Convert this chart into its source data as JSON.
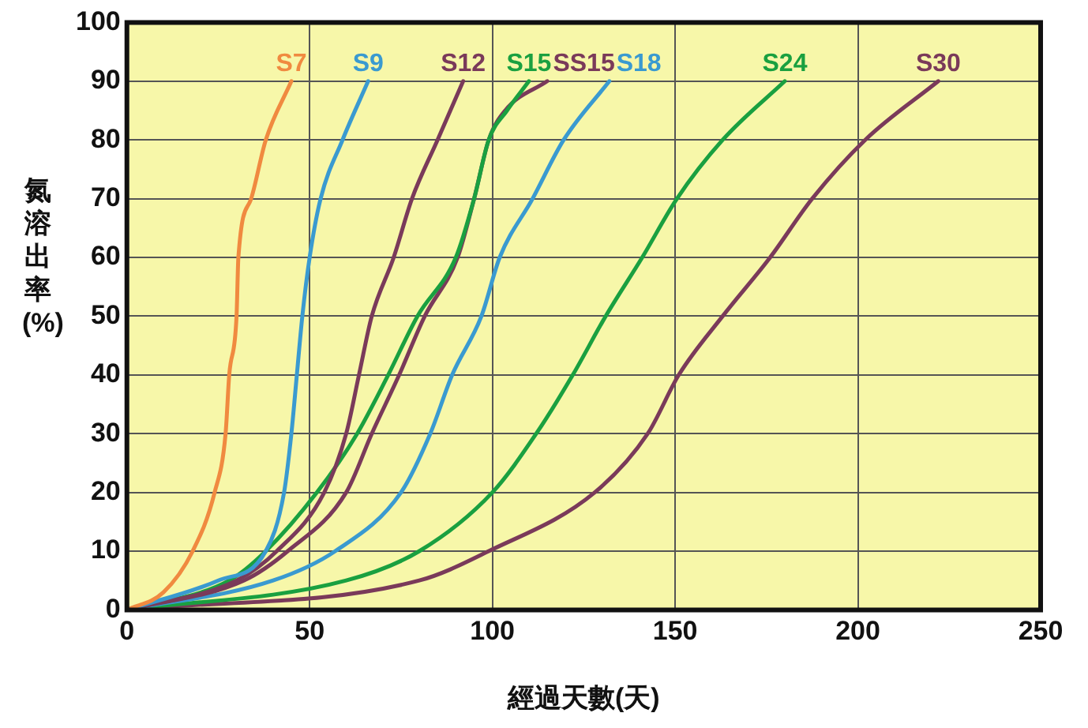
{
  "chart_data": {
    "type": "line",
    "xlabel": "經過天數(天)",
    "ylabel": "氮溶出率(%)",
    "xlim": [
      0,
      250
    ],
    "xticks": [
      0,
      50,
      100,
      150,
      200,
      250
    ],
    "ylim": [
      0,
      100
    ],
    "yticks": [
      0,
      10,
      20,
      30,
      40,
      50,
      60,
      70,
      80,
      90,
      100
    ],
    "grid": true,
    "legend": false,
    "marker": "none",
    "line_style": "solid",
    "series": [
      {
        "name": "S7",
        "color": "#f08a40",
        "x": [
          0,
          10,
          18,
          24,
          27,
          28,
          30,
          30.5,
          34,
          38,
          45
        ],
        "values": [
          0,
          3,
          10,
          20,
          30,
          40,
          50,
          60,
          70,
          80,
          90
        ]
      },
      {
        "name": "S9",
        "color": "#3a9ad0",
        "x": [
          0,
          25,
          38,
          43,
          45,
          46.5,
          48,
          50,
          53,
          59,
          66
        ],
        "values": [
          0,
          5,
          10,
          20,
          30,
          40,
          50,
          60,
          70,
          80,
          90
        ]
      },
      {
        "name": "S12",
        "color": "#7a3a5a",
        "x": [
          0,
          30,
          41,
          54,
          60,
          63.5,
          67,
          73,
          78,
          85,
          92
        ],
        "values": [
          0,
          5,
          10,
          20,
          30,
          40,
          50,
          60,
          70,
          80,
          90
        ]
      },
      {
        "name": "S15",
        "color": "#1aa040",
        "x": [
          0,
          28,
          38,
          52,
          63,
          71.5,
          79.5,
          90,
          95,
          99,
          104,
          110
        ],
        "values": [
          0,
          5,
          10,
          20,
          30,
          40,
          50,
          60,
          70,
          80,
          85,
          90
        ]
      },
      {
        "name": "SS15",
        "color": "#7a3a5a",
        "x": [
          0,
          32,
          44,
          60,
          67,
          74.5,
          81.5,
          90.5,
          95,
          99,
          103.5,
          115
        ],
        "values": [
          0,
          5,
          10,
          20,
          30,
          40,
          50,
          60,
          70,
          80,
          85,
          90
        ]
      },
      {
        "name": "S18",
        "color": "#3a9ad0",
        "x": [
          0,
          40,
          57,
          75,
          83,
          89,
          97,
          102,
          111,
          119.5,
          132
        ],
        "values": [
          0,
          5,
          10,
          20,
          30,
          40,
          50,
          60,
          70,
          80,
          90
        ]
      },
      {
        "name": "S24",
        "color": "#1aa040",
        "x": [
          0,
          60,
          80,
          100,
          112,
          122,
          131,
          141,
          150.5,
          163,
          180
        ],
        "values": [
          0,
          5,
          10,
          20,
          30,
          40,
          50,
          60,
          70,
          80,
          90
        ]
      },
      {
        "name": "S30",
        "color": "#7a3a5a",
        "x": [
          0,
          80,
          99,
          128,
          142.5,
          151,
          163,
          176,
          187.5,
          202,
          222
        ],
        "values": [
          0,
          5,
          10,
          20,
          30,
          40,
          50,
          60,
          70,
          80,
          90
        ]
      }
    ]
  }
}
